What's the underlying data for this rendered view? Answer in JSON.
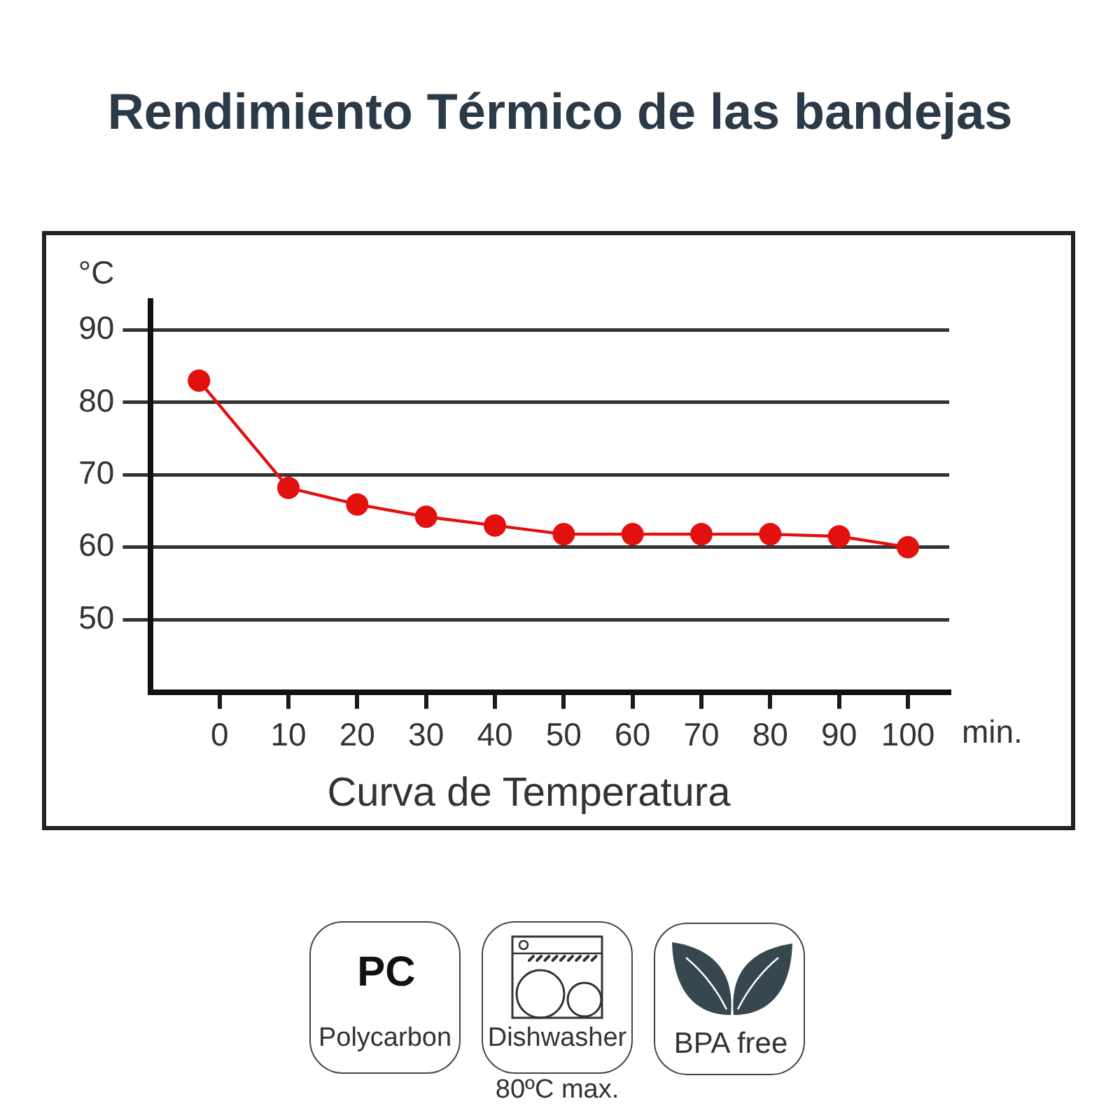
{
  "chart_data": {
    "type": "line",
    "title": "Rendimiento Térmico de las bandejas",
    "xlabel": "min.",
    "ylabel": "°C",
    "x": [
      -3,
      10,
      20,
      30,
      40,
      50,
      60,
      70,
      80,
      90,
      100
    ],
    "series": [
      {
        "color": "#e2100f",
        "values": [
          83,
          68.2,
          65.9,
          64.2,
          63,
          61.8,
          61.8,
          61.8,
          61.8,
          61.5,
          60
        ]
      }
    ],
    "xlim": [
      -10,
      106
    ],
    "xticks": [
      0,
      10,
      20,
      30,
      40,
      50,
      60,
      70,
      80,
      90,
      100
    ],
    "ylim": [
      40,
      94
    ],
    "yticks": [
      50,
      60,
      70,
      80,
      90
    ],
    "grid": "y",
    "marker": "circle",
    "line_style": "solid",
    "annotations": [
      "Curva de Temperatura",
      "PC",
      "Polycarbon",
      "Dishwasher",
      "80ºC max.",
      "BPA free"
    ]
  }
}
